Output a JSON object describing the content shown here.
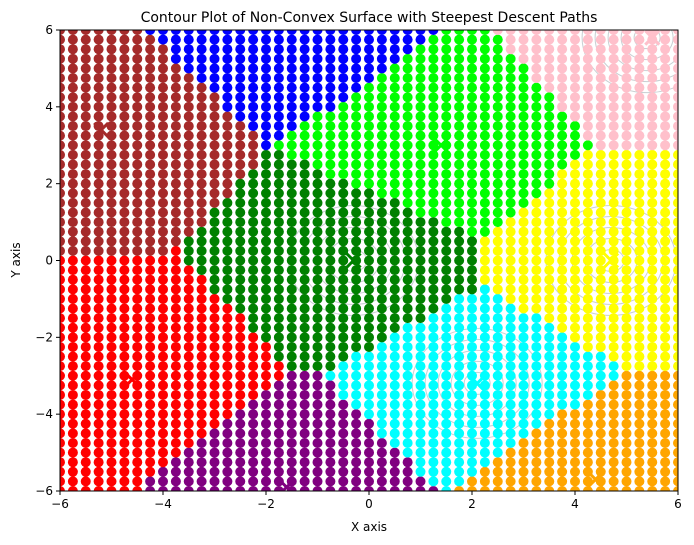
{
  "chart_data": {
    "type": "scatter",
    "title": "Contour Plot of Non-Convex Surface with Steepest Descent Paths",
    "xlabel": "X axis",
    "ylabel": "Y axis",
    "xlim": [
      -6,
      6
    ],
    "ylim": [
      -6,
      6
    ],
    "xticks": [
      "−6",
      "−4",
      "−2",
      "0",
      "2",
      "4",
      "6"
    ],
    "yticks": [
      "−6",
      "−4",
      "−2",
      "0",
      "2",
      "4",
      "6"
    ],
    "grid_points": {
      "x_start": -6,
      "x_end": 6,
      "y_start": -6,
      "y_end": 6,
      "count_per_axis": 49
    },
    "basins": [
      {
        "color": "#008000",
        "minimum": [
          -0.3,
          0.0
        ]
      },
      {
        "color": "#00ff00",
        "minimum": [
          1.4,
          3.0
        ]
      },
      {
        "color": "#0000ff",
        "minimum": [
          -1.6,
          6.2
        ]
      },
      {
        "color": "#a52a2a",
        "minimum": [
          -5.2,
          3.4
        ]
      },
      {
        "color": "#ff0000",
        "minimum": [
          -4.6,
          -3.1
        ]
      },
      {
        "color": "#800080",
        "minimum": [
          -1.6,
          -5.9
        ]
      },
      {
        "color": "#00ffff",
        "minimum": [
          2.1,
          -3.2
        ]
      },
      {
        "color": "#ffa500",
        "minimum": [
          4.4,
          -5.7
        ]
      },
      {
        "color": "#ffff00",
        "minimum": [
          4.7,
          0.0
        ]
      },
      {
        "color": "#ffc0cb",
        "minimum": [
          5.5,
          5.8
        ]
      }
    ],
    "contour_color": "#9aa5ad",
    "contour_centers": [
      [
        4.7,
        0.0
      ],
      [
        -0.3,
        0.0
      ],
      [
        5.4,
        5.8
      ],
      [
        2.1,
        -3.2
      ]
    ]
  }
}
